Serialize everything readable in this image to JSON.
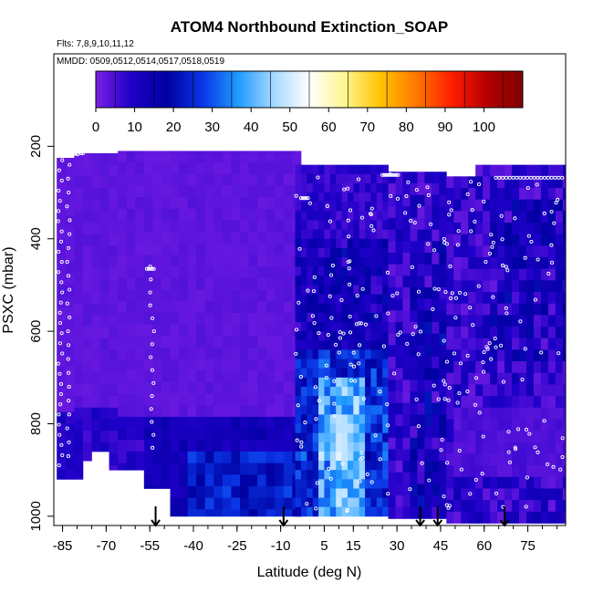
{
  "chart_data": {
    "type": "heatmap",
    "title": "ATOM4 Northbound Extinction_SOAP",
    "flights_note": "Flts: 7,8,9,10,11,12",
    "dates_note": "MMDD: 0509,0512,0514,0517,0518,0519",
    "xlabel": "Latitude (deg N)",
    "ylabel": "PSXC (mbar)",
    "xlim": [
      -88,
      88
    ],
    "ylim": [
      1020,
      0
    ],
    "x_ticks": [
      -85,
      -70,
      -55,
      -40,
      -25,
      -10,
      5,
      15,
      30,
      45,
      60,
      75
    ],
    "y_ticks": [
      200,
      400,
      600,
      800,
      1000
    ],
    "colorbar": {
      "min": 0,
      "max": 110,
      "ticks": [
        0,
        10,
        20,
        30,
        40,
        50,
        60,
        70,
        80,
        90,
        100
      ],
      "stops": [
        "#7b1fe6",
        "#1f00c8",
        "#0000a0",
        "#0a35e6",
        "#1e9bff",
        "#a6d8ff",
        "#ffffff",
        "#fff590",
        "#ffc400",
        "#ff7800",
        "#ff1e00",
        "#b40000",
        "#7f0000"
      ]
    },
    "arrow_latitudes": [
      -53,
      -9,
      38,
      44,
      67
    ],
    "coverage": [
      {
        "lat_range": [
          -85,
          -5
        ],
        "p_range": [
          210,
          1000
        ],
        "mean_value": 2
      },
      {
        "lat_range": [
          -5,
          27
        ],
        "p_range": [
          200,
          1000
        ],
        "mean_value": 18
      },
      {
        "lat_range": [
          5,
          15
        ],
        "p_range": [
          770,
          860
        ],
        "max_value": 55
      },
      {
        "lat_range": [
          27,
          88
        ],
        "p_range": [
          240,
          1000
        ],
        "mean_value": 10
      }
    ]
  }
}
